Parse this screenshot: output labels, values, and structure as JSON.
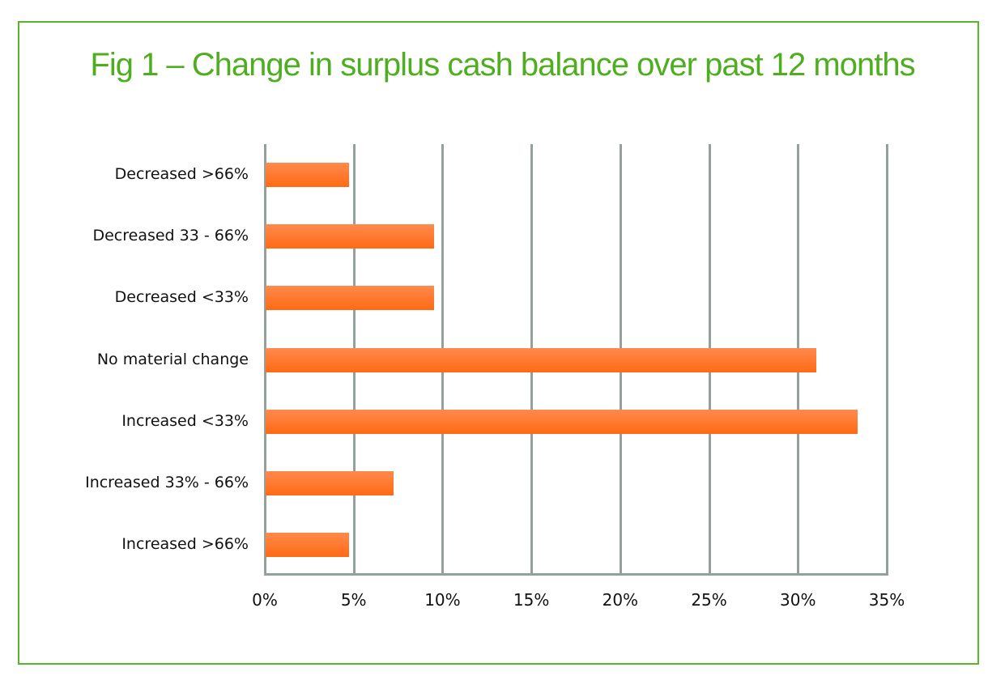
{
  "chart_data": {
    "type": "bar",
    "orientation": "horizontal",
    "title": "Fig 1 – Change in surplus cash balance over past 12 months",
    "xlabel": "",
    "ylabel": "",
    "categories": [
      "Decreased >66%",
      "Decreased 33 - 66%",
      "Decreased <33%",
      "No material change",
      "Increased <33%",
      "Increased 33% - 66%",
      "Increased >66%"
    ],
    "values": [
      4.7,
      9.5,
      9.5,
      31.0,
      33.3,
      7.2,
      4.7
    ],
    "unit": "%",
    "xlim": [
      0,
      35
    ],
    "xticks": [
      "0%",
      "5%",
      "10%",
      "15%",
      "20%",
      "25%",
      "30%",
      "35%"
    ],
    "grid": true,
    "legend": null,
    "colors": {
      "bar": "#ff7a30",
      "grid": "#93a09c",
      "title": "#4fae1f",
      "frame": "#5bb52a"
    }
  }
}
